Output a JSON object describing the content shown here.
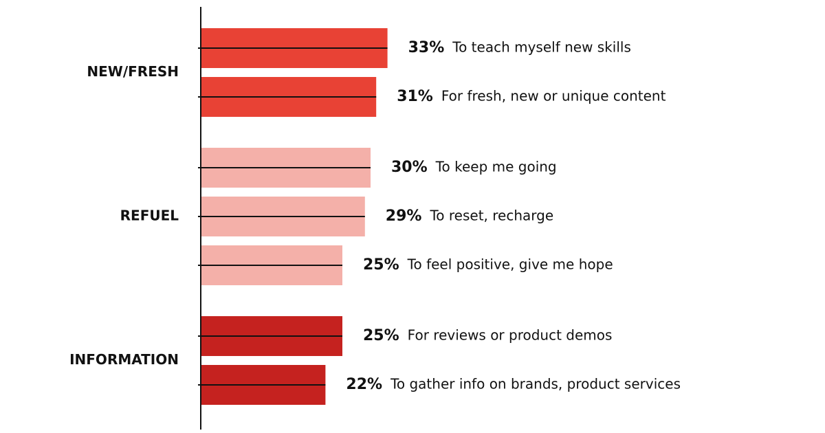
{
  "chart_data": {
    "type": "bar",
    "orientation": "horizontal",
    "groups": [
      {
        "name": "NEW/FRESH",
        "color": "#e84235",
        "categories": [
          "To teach myself new skills",
          "For fresh, new or unique content"
        ],
        "values": [
          33,
          31
        ],
        "value_labels": [
          "33%",
          "31%"
        ]
      },
      {
        "name": "REFUEL",
        "color": "#f4b0a9",
        "categories": [
          "To keep me going",
          "To reset, recharge",
          "To feel positive, give me hope"
        ],
        "values": [
          30,
          29,
          25
        ],
        "value_labels": [
          "30%",
          "29%",
          "25%"
        ]
      },
      {
        "name": "INFORMATION",
        "color": "#c5221f",
        "categories": [
          "For reviews or product demos",
          "To gather info on brands, product services"
        ],
        "values": [
          25,
          22
        ],
        "value_labels": [
          "25%",
          "22%"
        ]
      }
    ]
  }
}
